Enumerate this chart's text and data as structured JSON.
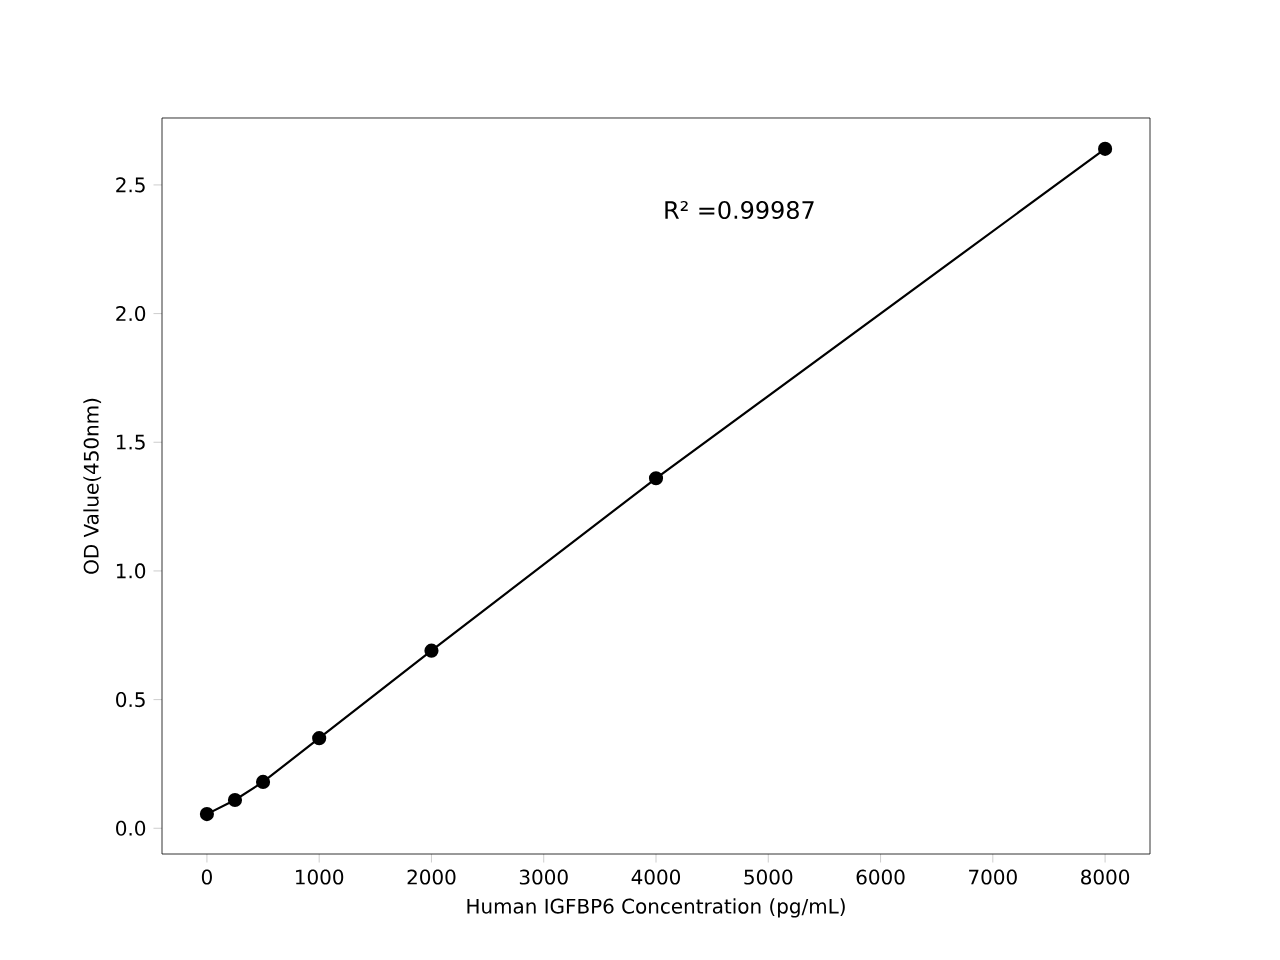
{
  "chart_data": {
    "type": "line",
    "xlabel": "Human IGFBP6 Concentration (pg/mL)",
    "ylabel": "OD Value(450nm)",
    "annotations": [
      "R² =0.99987"
    ],
    "x": [
      0,
      250,
      500,
      1000,
      2000,
      4000,
      8000
    ],
    "series": [
      {
        "color": "#000000",
        "values": [
          0.055,
          0.11,
          0.18,
          0.35,
          0.69,
          1.36,
          2.64
        ]
      }
    ],
    "xlim": [
      -400,
      8400
    ],
    "ylim": [
      -0.1,
      2.76
    ],
    "xticks": [
      0,
      1000,
      2000,
      3000,
      4000,
      5000,
      6000,
      7000,
      8000
    ],
    "yticks": [
      {
        "value": 0,
        "label": "0.0"
      },
      {
        "value": 0.5,
        "label": "0.5"
      },
      {
        "value": 1,
        "label": "1.0"
      },
      {
        "value": 1.5,
        "label": "1.5"
      },
      {
        "value": 2,
        "label": "2.0"
      },
      {
        "value": 2.5,
        "label": "2.5"
      }
    ],
    "grid": false,
    "marker": "circle",
    "line_style": "solid"
  }
}
